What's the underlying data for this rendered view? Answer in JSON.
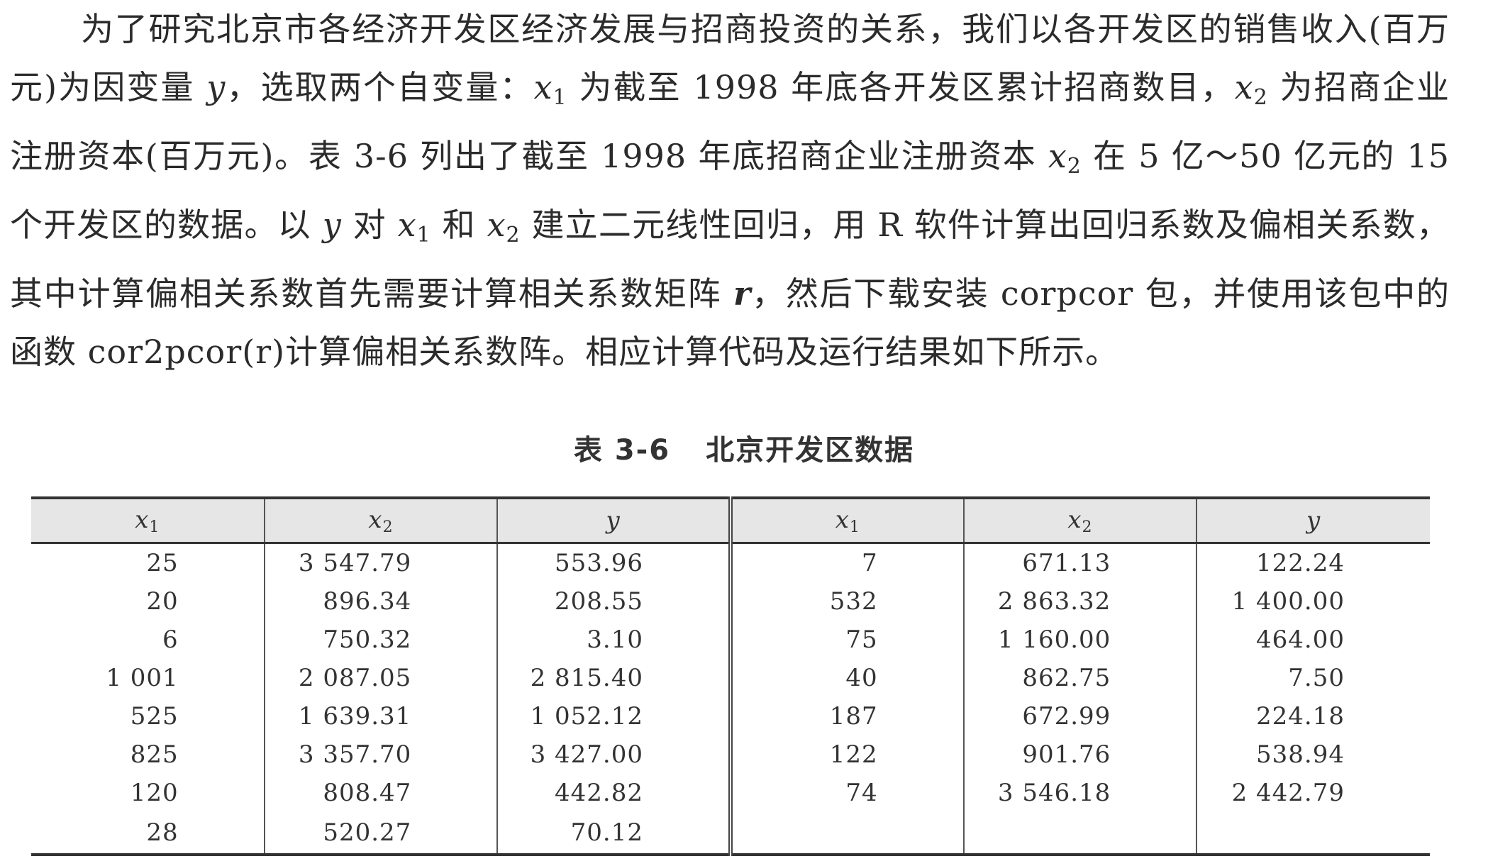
{
  "paragraph": {
    "p1": "为了研究北京市各经济开发区经济发展与招商投资的关系，我们以各开发区的销售收入(百万元)为因变量 ",
    "y1": "y",
    "p2": "，选取两个自变量：",
    "x1a": "x",
    "p3": " 为截至 1998 年底各开发区累计招商数目，",
    "x2a": "x",
    "p4": " 为招商企业注册资本(百万元)。表 3-6 列出了截至 1998 年底招商企业注册资本 ",
    "x2b": "x",
    "p5": " 在 5 亿～50 亿元的 15 个开发区的数据。以 ",
    "y2": "y",
    "p6": " 对 ",
    "x1b": "x",
    "p7": " 和 ",
    "x2c": "x",
    "p8": " 建立二元线性回归，用 R 软件计算出回归系数及偏相关系数，其中计算偏相关系数首先需要计算相关系数矩阵 ",
    "r": "r",
    "p9": "，然后下载安装 corpcor 包，并使用该包中的函数 cor2pcor(r)计算偏相关系数阵。相应计算代码及运行结果如下所示。",
    "sub1": "1",
    "sub2": "2"
  },
  "caption": {
    "number": "表 3-6",
    "title": "北京开发区数据"
  },
  "table": {
    "headers": [
      {
        "var": "x",
        "sub": "1"
      },
      {
        "var": "x",
        "sub": "2"
      },
      {
        "var": "y",
        "sub": ""
      },
      {
        "var": "x",
        "sub": "1"
      },
      {
        "var": "x",
        "sub": "2"
      },
      {
        "var": "y",
        "sub": ""
      }
    ],
    "rows": [
      [
        "25",
        "3 547.79",
        "553.96",
        "7",
        "671.13",
        "122.24"
      ],
      [
        "20",
        "896.34",
        "208.55",
        "532",
        "2 863.32",
        "1 400.00"
      ],
      [
        "6",
        "750.32",
        "3.10",
        "75",
        "1 160.00",
        "464.00"
      ],
      [
        "1 001",
        "2 087.05",
        "2 815.40",
        "40",
        "862.75",
        "7.50"
      ],
      [
        "525",
        "1 639.31",
        "1 052.12",
        "187",
        "672.99",
        "224.18"
      ],
      [
        "825",
        "3 357.70",
        "3 427.00",
        "122",
        "901.76",
        "538.94"
      ],
      [
        "120",
        "808.47",
        "442.82",
        "74",
        "3 546.18",
        "2 442.79"
      ],
      [
        "28",
        "520.27",
        "70.12",
        "",
        "",
        ""
      ]
    ]
  }
}
